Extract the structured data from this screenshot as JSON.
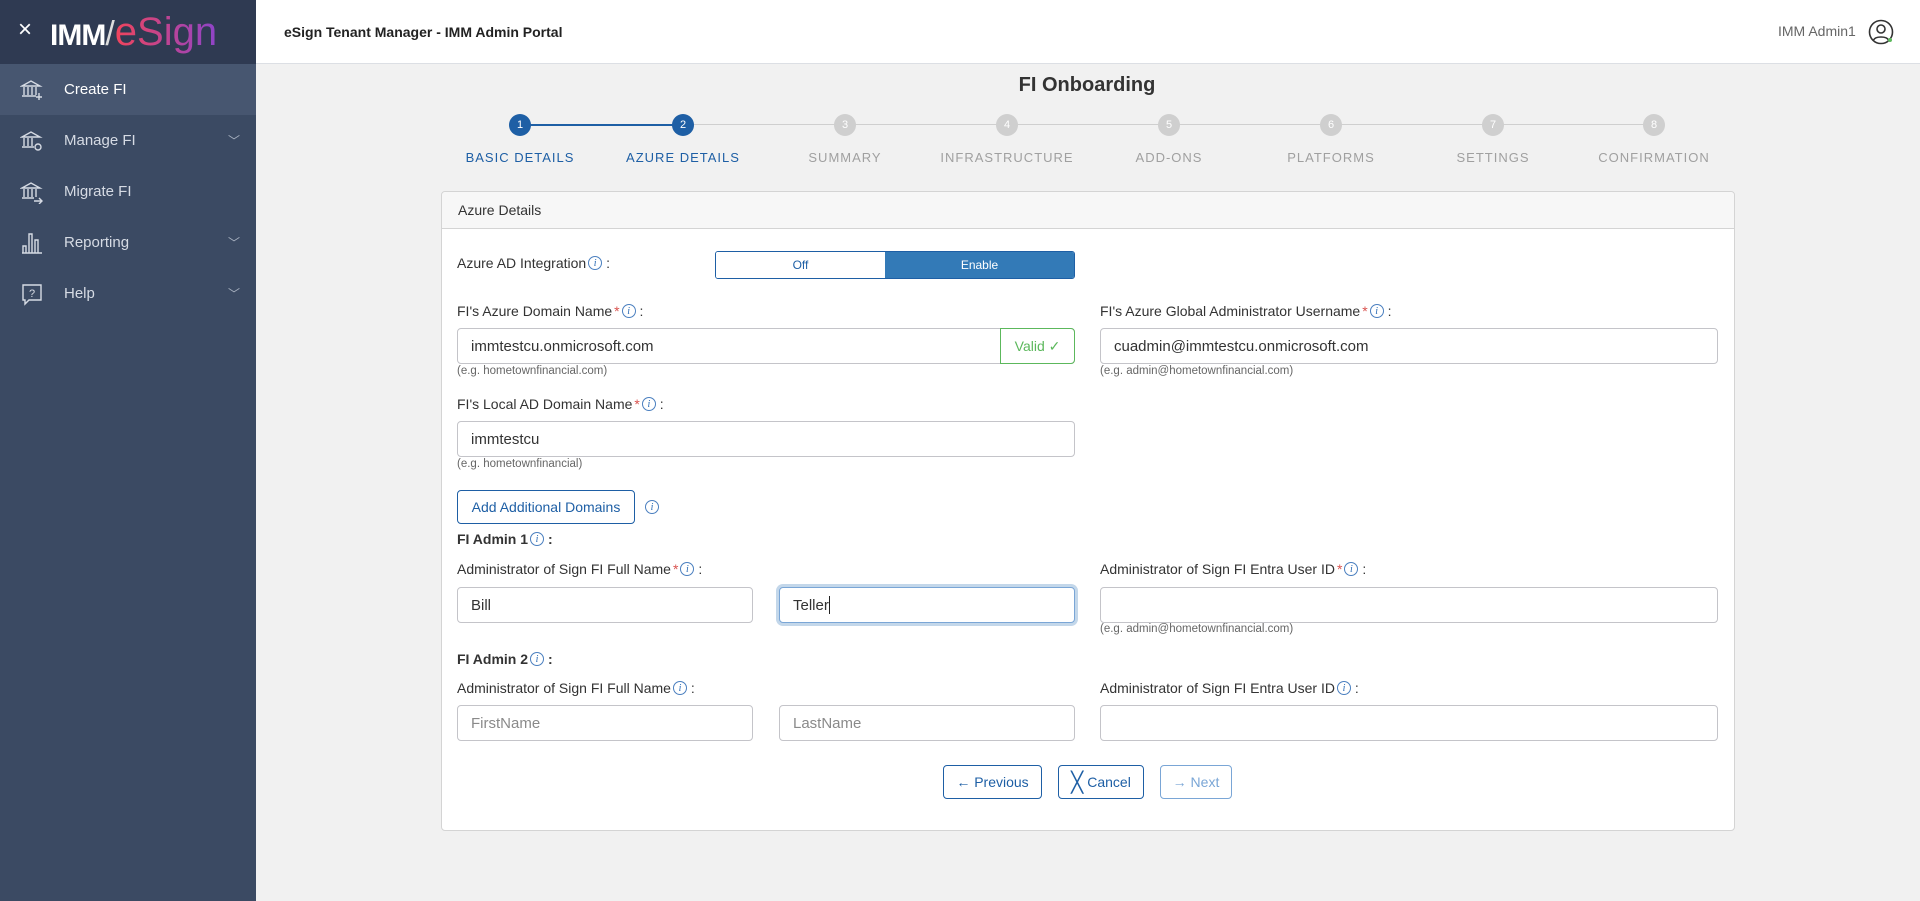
{
  "app": {
    "logo_text_1": "IMM",
    "logo_text_2": "eSign",
    "header_title": "eSign Tenant Manager - IMM Admin Portal",
    "user_name": "IMM Admin1"
  },
  "sidebar": {
    "items": [
      {
        "label": "Create FI",
        "icon": "bank-plus-icon",
        "active": true
      },
      {
        "label": "Manage FI",
        "icon": "bank-gear-icon",
        "expandable": true
      },
      {
        "label": "Migrate FI",
        "icon": "bank-arrow-icon"
      },
      {
        "label": "Reporting",
        "icon": "bar-chart-icon",
        "expandable": true
      },
      {
        "label": "Help",
        "icon": "help-bubble-icon",
        "expandable": true
      }
    ]
  },
  "page": {
    "title": "FI Onboarding"
  },
  "stepper": {
    "current": 2,
    "steps": [
      {
        "num": "1",
        "label": "BASIC DETAILS"
      },
      {
        "num": "2",
        "label": "AZURE DETAILS"
      },
      {
        "num": "3",
        "label": "SUMMARY"
      },
      {
        "num": "4",
        "label": "INFRASTRUCTURE"
      },
      {
        "num": "5",
        "label": "ADD-ONS"
      },
      {
        "num": "6",
        "label": "PLATFORMS"
      },
      {
        "num": "7",
        "label": "SETTINGS"
      },
      {
        "num": "8",
        "label": "CONFIRMATION"
      }
    ]
  },
  "form": {
    "section_title": "Azure Details",
    "azure_ad": {
      "label": "Azure AD Integration",
      "off": "Off",
      "enable": "Enable",
      "selected": "Enable"
    },
    "azure_domain": {
      "label": "FI's Azure Domain Name",
      "value": "immtestcu.onmicrosoft.com",
      "status": "Valid ✓",
      "hint": "(e.g. hometownfinancial.com)"
    },
    "global_admin": {
      "label": "FI's Azure Global Administrator Username",
      "value": "cuadmin@immtestcu.onmicrosoft.com",
      "hint": "(e.g. admin@hometownfinancial.com)"
    },
    "local_domain": {
      "label": "FI's Local AD Domain Name",
      "value": "immtestcu",
      "hint": "(e.g. hometownfinancial)"
    },
    "add_domains": "Add Additional Domains",
    "admin1": {
      "title": "FI Admin 1",
      "name_label": "Administrator of Sign FI Full Name",
      "first": "Bill",
      "last": "Teller",
      "id_label": "Administrator of Sign FI Entra User ID",
      "id_value": "",
      "id_hint": "(e.g. admin@hometownfinancial.com)"
    },
    "admin2": {
      "title": "FI Admin 2",
      "name_label": "Administrator of Sign FI Full Name",
      "first_placeholder": "FirstName",
      "last_placeholder": "LastName",
      "id_label": "Administrator of Sign FI Entra User ID",
      "id_value": ""
    },
    "colon": ":",
    "buttons": {
      "previous": "← Previous",
      "cancel": "Cancel",
      "next": "→ Next"
    }
  },
  "colors": {
    "primary": "#1e5fa5",
    "toggle_active": "#337ab7",
    "valid": "#5cb85c",
    "sidebar": "#3b4a63"
  }
}
